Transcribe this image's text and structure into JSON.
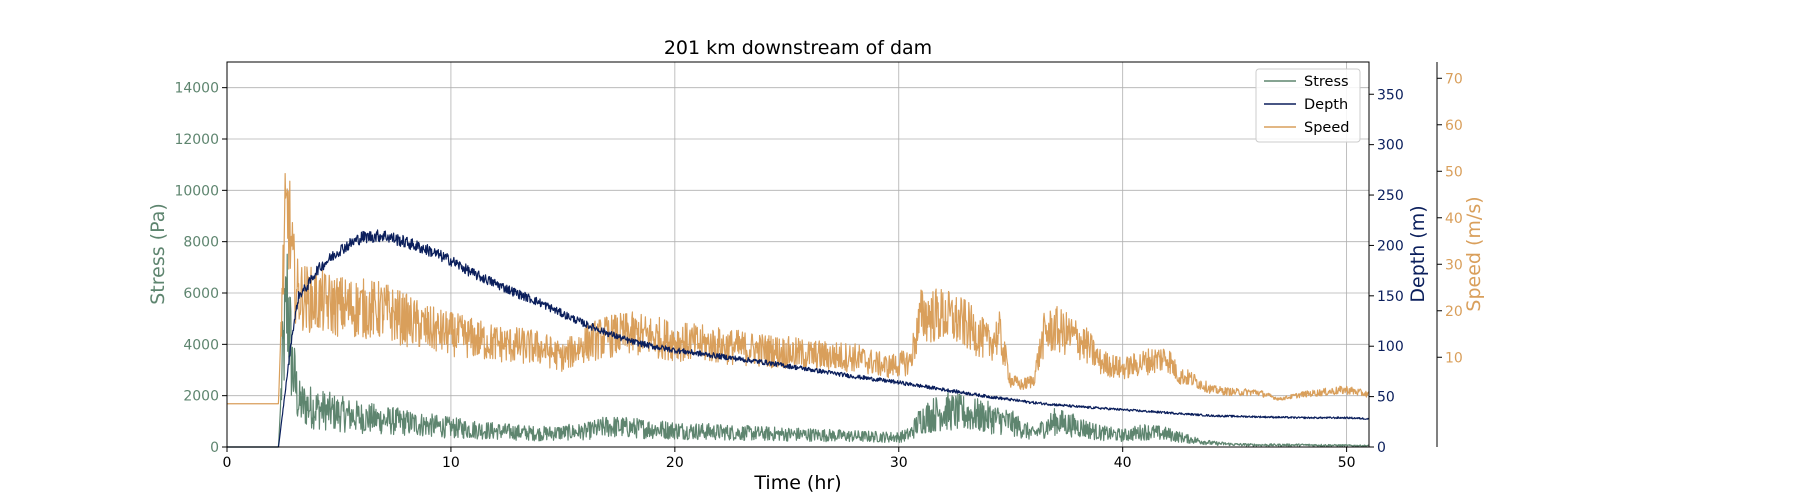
{
  "chart_data": {
    "type": "line",
    "title": "201 km downstream of dam",
    "xlabel": "Time (hr)",
    "xlim": [
      0,
      51
    ],
    "x_ticks": [
      0,
      10,
      20,
      30,
      40,
      50
    ],
    "grid": true,
    "legend_position": "top-right",
    "axes": {
      "stress": {
        "label": "Stress (Pa)",
        "ylim": [
          0,
          15000
        ],
        "ticks": [
          0,
          2000,
          4000,
          6000,
          8000,
          10000,
          12000,
          14000
        ],
        "color": "#5e856f"
      },
      "depth": {
        "label": "Depth (m)",
        "ylim": [
          0,
          382
        ],
        "ticks": [
          0,
          50,
          100,
          150,
          200,
          250,
          300,
          350
        ],
        "color": "#0b1f5c"
      },
      "speed": {
        "label": "Speed (m/s)",
        "ylim": [
          -9.3,
          73.5
        ],
        "ticks": [
          10,
          20,
          30,
          40,
          50,
          60,
          70
        ],
        "color": "#d99f5b"
      }
    },
    "series": [
      {
        "name": "Stress",
        "axis": "stress",
        "color": "#5e856f",
        "noise": 0.55,
        "x": [
          0,
          2.3,
          2.5,
          2.7,
          2.9,
          3.2,
          4,
          5,
          6,
          7,
          8,
          9,
          10,
          12,
          14,
          16,
          17,
          18,
          20,
          22,
          24,
          26,
          28,
          30,
          30.5,
          31,
          32,
          33,
          34,
          35,
          36,
          37,
          38,
          39,
          40,
          41,
          42,
          43,
          44,
          45,
          46,
          47,
          48,
          50,
          51
        ],
        "y": [
          0,
          0,
          3500,
          5800,
          3200,
          1700,
          1500,
          1300,
          1150,
          1050,
          950,
          850,
          750,
          620,
          520,
          600,
          800,
          750,
          650,
          580,
          520,
          480,
          420,
          380,
          500,
          1100,
          1400,
          1300,
          1150,
          950,
          500,
          1000,
          800,
          550,
          450,
          600,
          500,
          300,
          150,
          100,
          80,
          80,
          80,
          60,
          50
        ]
      },
      {
        "name": "Depth",
        "axis": "depth",
        "color": "#0b1f5c",
        "noise": 0.03,
        "x": [
          0,
          2.3,
          2.6,
          2.9,
          3.2,
          3.6,
          4,
          5,
          6,
          7,
          8,
          9,
          10,
          11,
          12,
          13,
          14,
          15,
          16,
          17,
          18,
          19,
          20,
          22,
          24,
          26,
          28,
          30,
          32,
          34,
          36,
          38,
          40,
          42,
          44,
          46,
          48,
          50,
          51
        ],
        "y": [
          0,
          0,
          55,
          110,
          150,
          160,
          175,
          195,
          208,
          210,
          203,
          195,
          185,
          172,
          162,
          152,
          143,
          132,
          122,
          113,
          105,
          100,
          96,
          90,
          84,
          77,
          70,
          64,
          57,
          50,
          44,
          40,
          37,
          34,
          31,
          30,
          29,
          29,
          28
        ]
      },
      {
        "name": "Speed",
        "axis": "speed",
        "color": "#d99f5b",
        "noise": 0.32,
        "x": [
          0,
          2.3,
          2.45,
          2.6,
          2.75,
          2.9,
          3.1,
          3.4,
          4,
          5,
          6,
          7,
          8,
          9,
          10,
          11,
          12,
          14,
          15,
          16,
          17,
          18,
          19,
          20,
          21,
          22,
          24,
          26,
          28,
          29.5,
          30.5,
          31,
          32,
          33,
          34,
          34.5,
          35,
          35.5,
          36,
          36.5,
          37,
          38,
          38.5,
          39,
          40,
          41,
          42,
          42.5,
          43,
          44,
          45,
          46,
          47,
          48,
          50,
          51
        ],
        "y": [
          0,
          0,
          22,
          38,
          41,
          31,
          24,
          23,
          22,
          21,
          20.5,
          20,
          18,
          16,
          15,
          14,
          13,
          12,
          10,
          13,
          14.5,
          15,
          14.5,
          13.5,
          13,
          12.5,
          11.5,
          10.5,
          10,
          8,
          9,
          19,
          19,
          17,
          13,
          15,
          5,
          4,
          5,
          15,
          16,
          14,
          12,
          9,
          7.5,
          9,
          10,
          6,
          5.5,
          3,
          2.5,
          2.5,
          1,
          2,
          3,
          2
        ]
      }
    ]
  }
}
